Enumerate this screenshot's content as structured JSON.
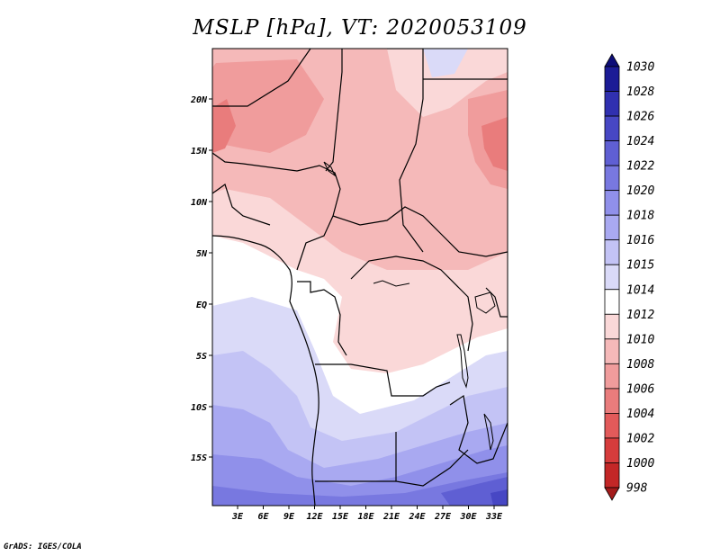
{
  "title": "MSLP [hPa], VT: 2020053109",
  "credit": "GrADS: IGES/COLA",
  "map": {
    "lat_ticks": [
      "20N",
      "15N",
      "10N",
      "5N",
      "EQ",
      "5S",
      "10S",
      "15S"
    ],
    "lon_ticks": [
      "3E",
      "6E",
      "9E",
      "12E",
      "15E",
      "18E",
      "21E",
      "24E",
      "27E",
      "30E",
      "33E"
    ]
  },
  "colorbar": {
    "levels": [
      998,
      1000,
      1002,
      1004,
      1006,
      1008,
      1010,
      1012,
      1014,
      1015,
      1016,
      1018,
      1020,
      1022,
      1024,
      1026,
      1028,
      1030
    ],
    "colors": [
      "#a31b1b",
      "#c32727",
      "#d63c3c",
      "#e25a5a",
      "#e97c7c",
      "#f09c9c",
      "#f5b9b9",
      "#fad8d8",
      "#ffffff",
      "#dadaf8",
      "#c3c3f5",
      "#a9a9f1",
      "#9090ea",
      "#7878e0",
      "#5f5fd3",
      "#4747c4",
      "#3030b0",
      "#1c1c96",
      "#0d0d78"
    ],
    "labels": [
      "998",
      "1000",
      "1002",
      "1004",
      "1006",
      "1008",
      "1010",
      "1012",
      "1014",
      "1015",
      "1016",
      "1018",
      "1020",
      "1022",
      "1024",
      "1026",
      "1028",
      "1030"
    ]
  }
}
